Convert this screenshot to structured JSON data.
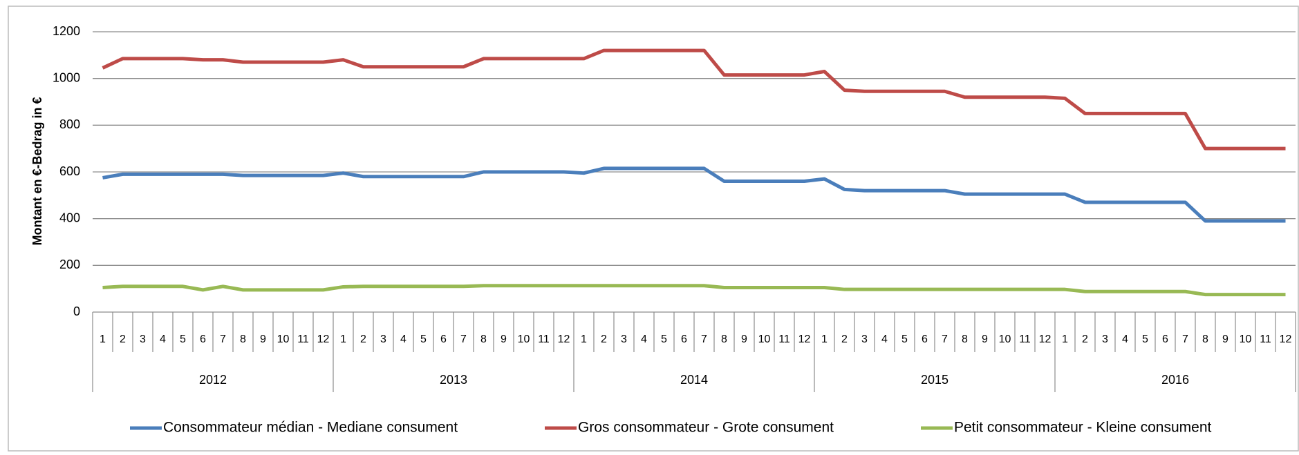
{
  "chart_data": {
    "type": "line",
    "y_label": "Montant en €-Bedrag in €",
    "categories": [
      "1",
      "2",
      "3",
      "4",
      "5",
      "6",
      "7",
      "8",
      "9",
      "10",
      "11",
      "12",
      "1",
      "2",
      "3",
      "4",
      "5",
      "6",
      "7",
      "8",
      "9",
      "10",
      "11",
      "12",
      "1",
      "2",
      "3",
      "4",
      "5",
      "6",
      "7",
      "8",
      "9",
      "10",
      "11",
      "12",
      "1",
      "2",
      "3",
      "4",
      "5",
      "6",
      "7",
      "8",
      "9",
      "10",
      "11",
      "12",
      "1",
      "2",
      "3",
      "4",
      "5",
      "6",
      "7",
      "8",
      "9",
      "10",
      "11",
      "12"
    ],
    "category_groups": [
      "2012",
      "2013",
      "2014",
      "2015",
      "2016"
    ],
    "series": [
      {
        "name": "Consommateur médian - Mediane consument",
        "color": "#4a7ebb",
        "values": [
          575,
          590,
          590,
          590,
          590,
          590,
          590,
          585,
          585,
          585,
          585,
          585,
          595,
          580,
          580,
          580,
          580,
          580,
          580,
          600,
          600,
          600,
          600,
          600,
          595,
          615,
          615,
          615,
          615,
          615,
          615,
          560,
          560,
          560,
          560,
          560,
          570,
          525,
          520,
          520,
          520,
          520,
          520,
          505,
          505,
          505,
          505,
          505,
          505,
          470,
          470,
          470,
          470,
          470,
          470,
          390,
          390,
          390,
          390,
          390
        ]
      },
      {
        "name": "Gros consommateur - Grote consument",
        "color": "#be4b48",
        "values": [
          1045,
          1085,
          1085,
          1085,
          1085,
          1080,
          1080,
          1070,
          1070,
          1070,
          1070,
          1070,
          1080,
          1050,
          1050,
          1050,
          1050,
          1050,
          1050,
          1085,
          1085,
          1085,
          1085,
          1085,
          1085,
          1120,
          1120,
          1120,
          1120,
          1120,
          1120,
          1015,
          1015,
          1015,
          1015,
          1015,
          1030,
          950,
          945,
          945,
          945,
          945,
          945,
          920,
          920,
          920,
          920,
          920,
          915,
          850,
          850,
          850,
          850,
          850,
          850,
          700,
          700,
          700,
          700,
          700
        ]
      },
      {
        "name": "Petit consommateur - Kleine consument",
        "color": "#98b954",
        "values": [
          105,
          110,
          110,
          110,
          110,
          95,
          110,
          95,
          95,
          95,
          95,
          95,
          108,
          110,
          110,
          110,
          110,
          110,
          110,
          113,
          113,
          113,
          113,
          113,
          113,
          113,
          113,
          113,
          113,
          113,
          113,
          105,
          105,
          105,
          105,
          105,
          105,
          97,
          97,
          97,
          97,
          97,
          97,
          97,
          97,
          97,
          97,
          97,
          97,
          88,
          88,
          88,
          88,
          88,
          88,
          75,
          75,
          75,
          75,
          75
        ]
      }
    ],
    "ylim": [
      0,
      1200
    ],
    "yticks": [
      0,
      200,
      400,
      600,
      800,
      1000,
      1200
    ],
    "grid": true,
    "legend": "bottom"
  }
}
